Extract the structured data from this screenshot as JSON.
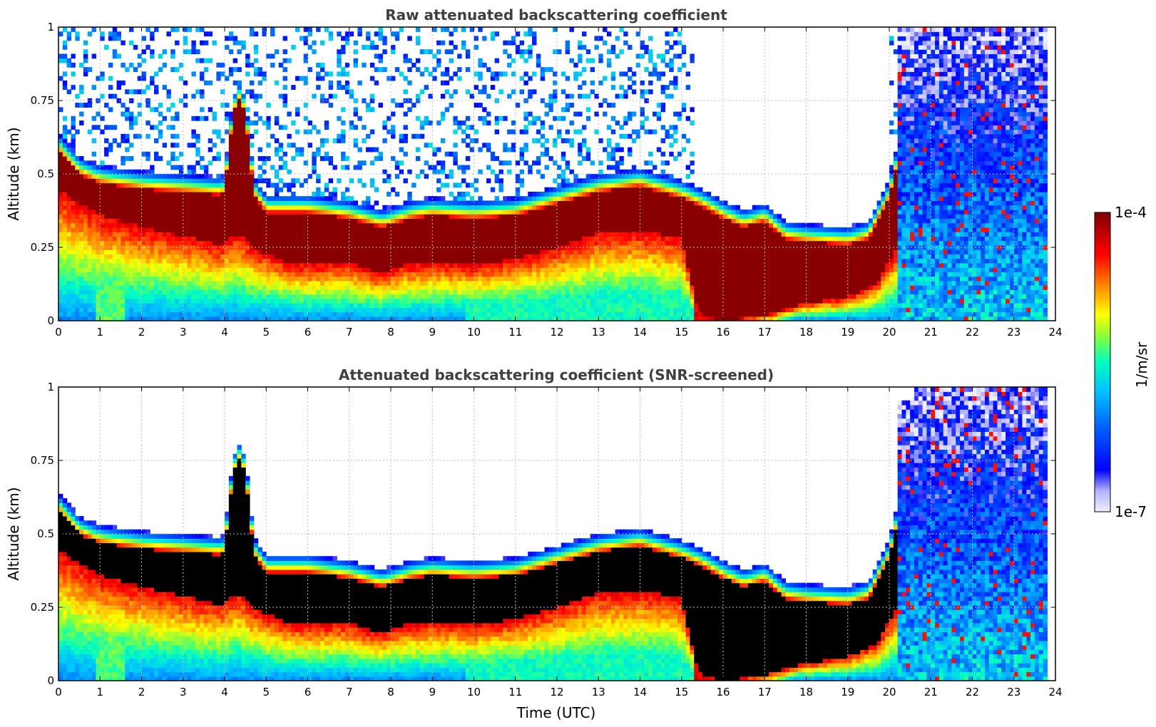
{
  "chart_data": [
    {
      "type": "heatmap",
      "title": "Raw attenuated backscattering coefficient",
      "xlabel": "",
      "ylabel": "Altitude (km)",
      "xlim": [
        0,
        24
      ],
      "ylim": [
        0,
        1
      ],
      "xticks": [
        "0",
        "1",
        "2",
        "3",
        "4",
        "5",
        "6",
        "7",
        "8",
        "9",
        "10",
        "11",
        "12",
        "13",
        "14",
        "15",
        "16",
        "17",
        "18",
        "19",
        "20",
        "21",
        "22",
        "23",
        "24"
      ],
      "yticks": [
        "0",
        "0.25",
        "0.5",
        "0.75",
        "1"
      ],
      "grid": true,
      "screened": false,
      "data_end_hour": 23.8,
      "layer_top_km": [
        [
          0,
          0.58
        ],
        [
          0.5,
          0.5
        ],
        [
          1,
          0.47
        ],
        [
          1.5,
          0.46
        ],
        [
          2,
          0.45
        ],
        [
          3,
          0.44
        ],
        [
          3.9,
          0.43
        ],
        [
          4.2,
          0.45
        ],
        [
          4.5,
          0.45
        ],
        [
          4.7,
          0.43
        ],
        [
          5,
          0.37
        ],
        [
          6,
          0.37
        ],
        [
          7,
          0.35
        ],
        [
          7.8,
          0.32
        ],
        [
          8.5,
          0.35
        ],
        [
          9,
          0.36
        ],
        [
          10,
          0.35
        ],
        [
          11,
          0.36
        ],
        [
          12,
          0.4
        ],
        [
          13,
          0.44
        ],
        [
          14,
          0.46
        ],
        [
          14.5,
          0.44
        ],
        [
          15,
          0.42
        ],
        [
          15.5,
          0.39
        ],
        [
          16,
          0.35
        ],
        [
          16.5,
          0.32
        ],
        [
          17,
          0.34
        ],
        [
          17.5,
          0.28
        ],
        [
          18,
          0.27
        ],
        [
          19,
          0.26
        ],
        [
          19.5,
          0.28
        ],
        [
          20,
          0.42
        ],
        [
          20.3,
          0.6
        ]
      ],
      "layer_bottom_km": [
        [
          0,
          0.45
        ],
        [
          0.5,
          0.4
        ],
        [
          1,
          0.36
        ],
        [
          2,
          0.32
        ],
        [
          3,
          0.29
        ],
        [
          3.9,
          0.26
        ],
        [
          4.3,
          0.3
        ],
        [
          4.8,
          0.24
        ],
        [
          5.5,
          0.2
        ],
        [
          6,
          0.19
        ],
        [
          7,
          0.2
        ],
        [
          7.7,
          0.16
        ],
        [
          8.3,
          0.19
        ],
        [
          9,
          0.2
        ],
        [
          10,
          0.19
        ],
        [
          11,
          0.21
        ],
        [
          12,
          0.25
        ],
        [
          13,
          0.3
        ],
        [
          14,
          0.31
        ],
        [
          15,
          0.28
        ],
        [
          15.4,
          0.03
        ],
        [
          16,
          0.0
        ],
        [
          17,
          0.02
        ],
        [
          18,
          0.06
        ],
        [
          19,
          0.08
        ],
        [
          19.7,
          0.13
        ],
        [
          20.2,
          0.25
        ]
      ],
      "plume": {
        "x_start_hour": 4.0,
        "x_end_hour": 4.7,
        "peak_km": 0.75
      },
      "colorbar": {
        "min_label": "1e-7",
        "max_label": "1e-4",
        "label": "1/m/sr"
      }
    },
    {
      "type": "heatmap",
      "title": "Attenuated backscattering coefficient (SNR-screened)",
      "xlabel": "Time (UTC)",
      "ylabel": "Altitude (km)",
      "xlim": [
        0,
        24
      ],
      "ylim": [
        0,
        1
      ],
      "xticks": [
        "0",
        "1",
        "2",
        "3",
        "4",
        "5",
        "6",
        "7",
        "8",
        "9",
        "10",
        "11",
        "12",
        "13",
        "14",
        "15",
        "16",
        "17",
        "18",
        "19",
        "20",
        "21",
        "22",
        "23",
        "24"
      ],
      "yticks": [
        "0",
        "0.25",
        "0.5",
        "0.75",
        "1"
      ],
      "grid": true,
      "screened": true,
      "data_end_hour": 23.8
    }
  ],
  "colors": {
    "background": "#ffffff",
    "title": "#404040",
    "grid": "#bfbfbf",
    "colormap": [
      "#f0f0ff",
      "#0000ff",
      "#00c0ff",
      "#00ffc0",
      "#ffff00",
      "#ff8000",
      "#ff0000",
      "#800000"
    ]
  }
}
